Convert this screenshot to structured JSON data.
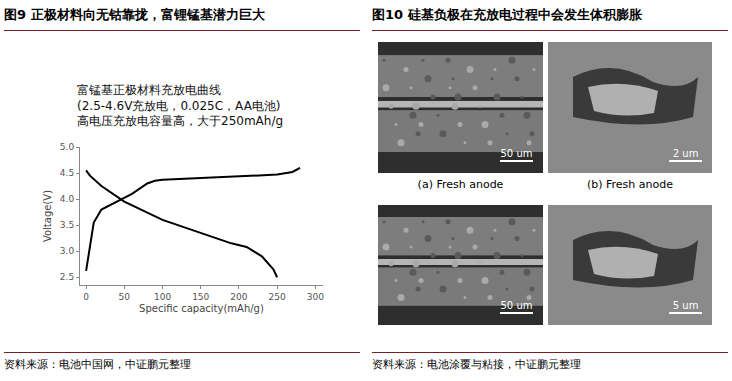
{
  "figures": [
    {
      "title": "图9  正极材料向无钴靠拢，富锂锰基潜力巨大",
      "source": "资料来源：电池中国网，中证鹏元整理"
    },
    {
      "title": "图10   硅基负极在充放电过程中会发生体积膨胀",
      "source": "资料来源：电池涂覆与粘接，中证鹏元整理",
      "panels": [
        {
          "caption": "(a) Fresh anode",
          "scale_bar": "50 um"
        },
        {
          "caption": "(b) Fresh anode",
          "scale_bar": "2 um"
        },
        {
          "scale_bar": "50 um"
        },
        {
          "scale_bar": "5 um"
        }
      ]
    }
  ],
  "chart_data": {
    "type": "line",
    "annotations": [
      "富锰基正极材料充放电曲线",
      "(2.5-4.6V充放电，0.025C，AA电池)",
      "高电压充放电容量高，大于250mAh/g"
    ],
    "x_label": "Specific capacity(mAh/g)",
    "y_label": "Voltage(V)",
    "series": [
      {
        "color": "#000000",
        "line_style": "solid",
        "x": [
          0,
          3,
          6,
          10,
          20,
          40,
          60,
          80,
          90,
          100,
          150,
          200,
          250,
          270,
          280
        ],
        "values": [
          2.62,
          2.9,
          3.25,
          3.55,
          3.8,
          3.95,
          4.1,
          4.3,
          4.35,
          4.37,
          4.4,
          4.44,
          4.47,
          4.52,
          4.6
        ]
      },
      {
        "color": "#000000",
        "line_style": "solid",
        "x": [
          0,
          5,
          20,
          50,
          100,
          150,
          190,
          210,
          230,
          245,
          250
        ],
        "values": [
          4.55,
          4.45,
          4.25,
          3.95,
          3.6,
          3.35,
          3.15,
          3.08,
          2.9,
          2.65,
          2.5
        ]
      }
    ],
    "xlim": [
      -8,
      310
    ],
    "ylim": [
      2.35,
      5.0
    ],
    "xticks": [
      0,
      50,
      100,
      150,
      200,
      250,
      300
    ],
    "yticks": [
      2.5,
      {
        "value": 3,
        "label": "3.0"
      },
      3.5,
      {
        "value": 4,
        "label": "4.0"
      },
      4.5,
      {
        "value": 5,
        "label": "5.0"
      }
    ],
    "grid": false
  }
}
